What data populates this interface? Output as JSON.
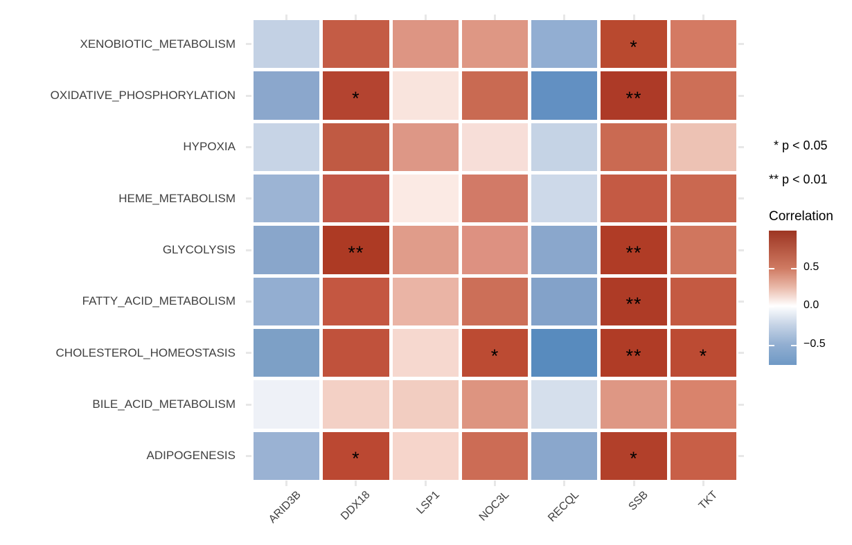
{
  "figure": {
    "background": "#ffffff",
    "colors": {
      "axis_text": "#404040",
      "tick_mark": "#e7e7e7",
      "star": "#000000",
      "colorbar_top": "#9d3522",
      "colorbar_mid": "#ffffff",
      "colorbar_bottom": "#6f99c5"
    },
    "legend": {
      "sig1_star": "*",
      "sig1_text": "p < 0.05",
      "sig2_star": "**",
      "sig2_text": "p < 0.01",
      "colorbar_title": "Correlation",
      "colorbar_tick_labels": [
        "0.5",
        "0.0",
        "−0.5"
      ]
    }
  },
  "chart_data": {
    "type": "heatmap",
    "title": "",
    "xlabel": "",
    "ylabel": "",
    "legend_position": "right",
    "grid": false,
    "columns": [
      "ARID3B",
      "DDX18",
      "LSP1",
      "NOC3L",
      "RECQL",
      "SSB",
      "TKT"
    ],
    "rows": [
      "XENOBIOTIC_METABOLISM",
      "OXIDATIVE_PHOSPHORYLATION",
      "HYPOXIA",
      "HEME_METABOLISM",
      "GLYCOLYSIS",
      "FATTY_ACID_METABOLISM",
      "CHOLESTEROL_HOMEOSTASIS",
      "BILE_ACID_METABOLISM",
      "ADIPOGENESIS"
    ],
    "values": [
      [
        -0.28,
        0.66,
        0.45,
        0.44,
        -0.47,
        0.73,
        0.55
      ],
      [
        -0.52,
        0.76,
        0.09,
        0.59,
        -0.68,
        0.8,
        0.57
      ],
      [
        -0.25,
        0.66,
        0.44,
        0.12,
        -0.26,
        0.59,
        0.26
      ],
      [
        -0.43,
        0.66,
        0.07,
        0.52,
        -0.21,
        0.64,
        0.6
      ],
      [
        -0.53,
        0.8,
        0.41,
        0.46,
        -0.52,
        0.78,
        0.54
      ],
      [
        -0.47,
        0.67,
        0.31,
        0.57,
        -0.56,
        0.79,
        0.66
      ],
      [
        -0.58,
        0.69,
        0.16,
        0.72,
        -0.72,
        0.78,
        0.72
      ],
      [
        -0.06,
        0.19,
        0.21,
        0.45,
        -0.17,
        0.44,
        0.5
      ],
      [
        -0.44,
        0.73,
        0.17,
        0.58,
        -0.52,
        0.77,
        0.63
      ]
    ],
    "significance": [
      [
        "",
        "",
        "",
        "",
        "",
        "*",
        ""
      ],
      [
        "",
        "*",
        "",
        "",
        "",
        "**",
        ""
      ],
      [
        "",
        "",
        "",
        "",
        "",
        "",
        ""
      ],
      [
        "",
        "",
        "",
        "",
        "",
        "",
        ""
      ],
      [
        "",
        "**",
        "",
        "",
        "",
        "**",
        ""
      ],
      [
        "",
        "",
        "",
        "",
        "",
        "**",
        ""
      ],
      [
        "",
        "",
        "",
        "*",
        "",
        "**",
        "*"
      ],
      [
        "",
        "",
        "",
        "",
        "",
        "",
        ""
      ],
      [
        "",
        "*",
        "",
        "",
        "",
        "*",
        ""
      ]
    ],
    "cell_colors": [
      [
        "#c3d1e4",
        "#c45c45",
        "#dd9583",
        "#de9784",
        "#92aed2",
        "#b9492f",
        "#d47a63"
      ],
      [
        "#8ba7cc",
        "#b44430",
        "#f9e4dd",
        "#c96a52",
        "#6290c2",
        "#ad3a27",
        "#cd6f57"
      ],
      [
        "#c7d4e6",
        "#c05a43",
        "#dd9786",
        "#f7ded8",
        "#c5d3e5",
        "#ca6a52",
        "#edc2b4"
      ],
      [
        "#9cb4d4",
        "#c25847",
        "#fbeae4",
        "#d27a67",
        "#cdd9e9",
        "#c45a44",
        "#ca6850"
      ],
      [
        "#89a6cb",
        "#ad3a24",
        "#e09c8a",
        "#dd9181",
        "#8aa7cc",
        "#b03c26",
        "#d0765e"
      ],
      [
        "#93aed1",
        "#c45741",
        "#eab4a5",
        "#cc6f58",
        "#83a2c9",
        "#ae3b26",
        "#c45a42"
      ],
      [
        "#7da0c6",
        "#c0523c",
        "#f6d8cf",
        "#bc4b33",
        "#588bbe",
        "#b03c26",
        "#bc4b33"
      ],
      [
        "#eef1f7",
        "#f3d0c5",
        "#f2cdc1",
        "#dd9480",
        "#d5dfec",
        "#de9784",
        "#d9836c"
      ],
      [
        "#9ab2d3",
        "#bb4832",
        "#f6d5cb",
        "#cc6c55",
        "#8aa7cc",
        "#b2402a",
        "#c85f47"
      ]
    ],
    "annotations": [
      "* p < 0.05",
      "** p < 0.01"
    ],
    "colorbar": {
      "title": "Correlation",
      "ticks": [
        0.5,
        0.0,
        -0.5
      ],
      "domain_top_to_bottom": [
        1.0,
        -0.77
      ]
    }
  }
}
